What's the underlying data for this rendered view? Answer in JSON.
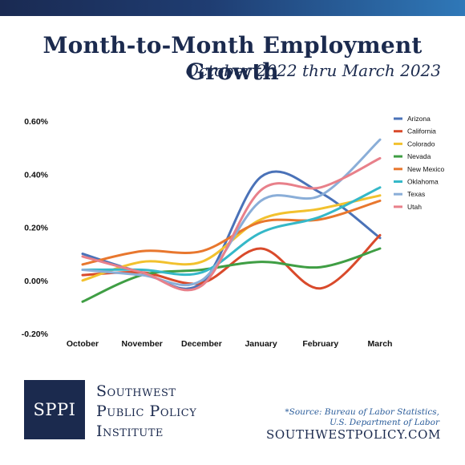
{
  "header": {
    "title": "Month-to-Month Employment Growth",
    "subtitle": "October 2022 thru March 2023"
  },
  "colors": {
    "topbar": "#1f3d72",
    "brand": "#1b2a4e",
    "source": "#2a5c9a"
  },
  "chart_data": {
    "type": "line",
    "categories": [
      "October",
      "November",
      "December",
      "January",
      "February",
      "March"
    ],
    "ylim": [
      -0.2,
      0.6
    ],
    "yticks": [
      "-0.20%",
      "0.00%",
      "0.20%",
      "0.40%",
      "0.60%"
    ],
    "ytick_values": [
      -0.2,
      0.0,
      0.2,
      0.4,
      0.6
    ],
    "grid": false,
    "legend_position": "top-right",
    "series": [
      {
        "name": "Arizona",
        "color": "#4a72b8",
        "values": [
          0.1,
          0.03,
          -0.01,
          0.39,
          0.33,
          0.16
        ]
      },
      {
        "name": "California",
        "color": "#d94a2b",
        "values": [
          0.02,
          0.03,
          -0.01,
          0.12,
          -0.03,
          0.17
        ]
      },
      {
        "name": "Colorado",
        "color": "#f2c12e",
        "values": [
          0.0,
          0.07,
          0.07,
          0.23,
          0.27,
          0.32
        ]
      },
      {
        "name": "Nevada",
        "color": "#3f9e44",
        "values": [
          -0.08,
          0.02,
          0.04,
          0.07,
          0.05,
          0.12
        ]
      },
      {
        "name": "New Mexico",
        "color": "#e8772e",
        "values": [
          0.06,
          0.11,
          0.11,
          0.22,
          0.23,
          0.3
        ]
      },
      {
        "name": "Oklahoma",
        "color": "#35b8c8",
        "values": [
          0.04,
          0.04,
          0.03,
          0.18,
          0.24,
          0.35
        ]
      },
      {
        "name": "Texas",
        "color": "#8aaed8",
        "values": [
          0.04,
          0.02,
          0.0,
          0.3,
          0.32,
          0.53
        ]
      },
      {
        "name": "Utah",
        "color": "#e8808a",
        "values": [
          0.09,
          0.03,
          -0.02,
          0.34,
          0.35,
          0.46
        ]
      }
    ]
  },
  "footer": {
    "logo": "SPPI",
    "org_line1": "Southwest",
    "org_line2": "Public Policy",
    "org_line3": "Institute",
    "source_line1": "*Source: Bureau of Labor Statistics,",
    "source_line2": "U.S. Department of Labor",
    "url": "SOUTHWESTPOLICY.COM"
  }
}
